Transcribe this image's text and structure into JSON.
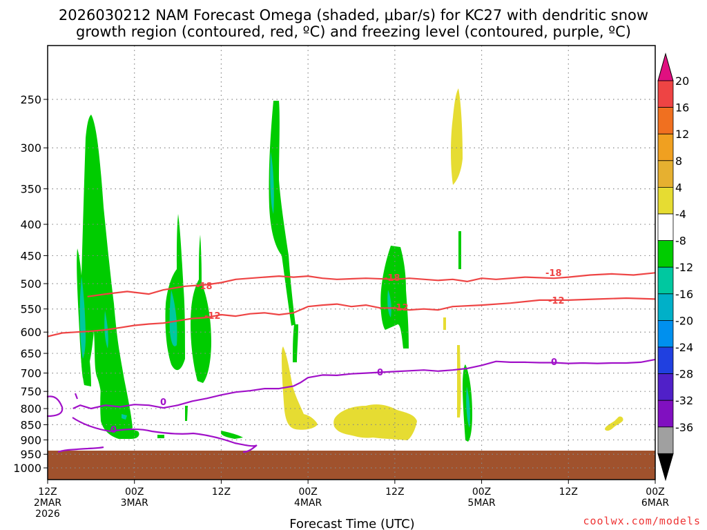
{
  "page": {
    "title_line1": "2026030212 NAM Forecast Omega (shaded, μbar/s) for KC27 with dendritic snow",
    "title_line2": "growth region (contoured, red, ºC) and freezing level (contoured, purple, ºC)",
    "x_axis_title": "Forecast Time (UTC)",
    "credit": "coolwx.com/models"
  },
  "colors": {
    "green": "#00cc00",
    "teal": "#00c8a0",
    "yellow": "#e6dc32",
    "red_contour": "#ee4444",
    "purple_contour": "#a010c8",
    "ground": "#a0522d",
    "grid": "#888888"
  },
  "chart_data": {
    "type": "heatmap",
    "title": "2026030212 NAM Forecast Omega (shaded, μbar/s) for KC27 with dendritic snow growth region (contoured, red, ºC) and freezing level (contoured, purple, ºC)",
    "xlabel": "Forecast Time (UTC)",
    "ylabel": "",
    "y_scale": "pressure (log)",
    "y_ticks": [
      250,
      300,
      350,
      400,
      450,
      500,
      550,
      600,
      650,
      700,
      750,
      800,
      850,
      900,
      950,
      1000
    ],
    "x_hours_range": [
      0,
      84
    ],
    "x_ticks": [
      {
        "hour": 0,
        "lines": [
          "12Z",
          "2MAR",
          "2026"
        ]
      },
      {
        "hour": 12,
        "lines": [
          "00Z",
          "3MAR"
        ]
      },
      {
        "hour": 24,
        "lines": [
          "12Z"
        ]
      },
      {
        "hour": 36,
        "lines": [
          "00Z",
          "4MAR"
        ]
      },
      {
        "hour": 48,
        "lines": [
          "12Z"
        ]
      },
      {
        "hour": 60,
        "lines": [
          "00Z",
          "5MAR"
        ]
      },
      {
        "hour": 72,
        "lines": [
          "12Z"
        ]
      },
      {
        "hour": 84,
        "lines": [
          "00Z",
          "6MAR"
        ]
      }
    ],
    "colorbar": {
      "labels": [
        20,
        16,
        12,
        8,
        4,
        -4,
        -8,
        -12,
        -16,
        -20,
        -24,
        -28,
        -32,
        -36
      ],
      "bands": [
        "#ee4444",
        "#f07020",
        "#f0a020",
        "#e6b030",
        "#e6dc32",
        "#ffffff",
        "#00cc00",
        "#00c8a0",
        "#00b0c8",
        "#0090ee",
        "#2040e0",
        "#5020c8",
        "#8010c0",
        "#a0a0a0"
      ],
      "top_arrow": "#e01080",
      "bottom_arrow": "#000000"
    },
    "ground_pressure": 940,
    "contour_labels": [
      {
        "text": "-18",
        "color": "red"
      },
      {
        "text": "-18",
        "color": "red"
      },
      {
        "text": "-18",
        "color": "red"
      },
      {
        "text": "-12",
        "color": "red"
      },
      {
        "text": "-12",
        "color": "red"
      },
      {
        "text": "-12",
        "color": "red"
      },
      {
        "text": "0",
        "color": "purple"
      },
      {
        "text": "0",
        "color": "purple"
      },
      {
        "text": "0",
        "color": "purple"
      },
      {
        "text": "0",
        "color": "purple"
      }
    ],
    "series": [
      {
        "kind": "contour",
        "value": -18,
        "color": "red",
        "points": [
          [
            5.5,
            525
          ],
          [
            8,
            520
          ],
          [
            11,
            515
          ],
          [
            14,
            520
          ],
          [
            16,
            512
          ],
          [
            19,
            505
          ],
          [
            22,
            502
          ],
          [
            24,
            498
          ],
          [
            26,
            492
          ],
          [
            28,
            490
          ],
          [
            30,
            488
          ],
          [
            32,
            486
          ],
          [
            34,
            488
          ],
          [
            36,
            486
          ],
          [
            38,
            490
          ],
          [
            40,
            492
          ],
          [
            44,
            490
          ],
          [
            48,
            492
          ],
          [
            50,
            490
          ],
          [
            54,
            494
          ],
          [
            56,
            492
          ],
          [
            58,
            496
          ],
          [
            60,
            490
          ],
          [
            62,
            492
          ],
          [
            66,
            488
          ],
          [
            70,
            490
          ],
          [
            72,
            488
          ],
          [
            75,
            484
          ],
          [
            78,
            482
          ],
          [
            81,
            484
          ],
          [
            84,
            480
          ]
        ]
      },
      {
        "kind": "contour",
        "value": -12,
        "color": "red",
        "points": [
          [
            0,
            610
          ],
          [
            2,
            602
          ],
          [
            4,
            600
          ],
          [
            6,
            598
          ],
          [
            8,
            595
          ],
          [
            10,
            590
          ],
          [
            12,
            585
          ],
          [
            14,
            582
          ],
          [
            16,
            580
          ],
          [
            18,
            575
          ],
          [
            20,
            570
          ],
          [
            22,
            568
          ],
          [
            24,
            562
          ],
          [
            26,
            565
          ],
          [
            28,
            560
          ],
          [
            30,
            558
          ],
          [
            32,
            562
          ],
          [
            34,
            558
          ],
          [
            36,
            545
          ],
          [
            38,
            542
          ],
          [
            40,
            540
          ],
          [
            42,
            545
          ],
          [
            44,
            542
          ],
          [
            46,
            548
          ],
          [
            48,
            548
          ],
          [
            50,
            552
          ],
          [
            52,
            550
          ],
          [
            54,
            552
          ],
          [
            56,
            545
          ],
          [
            60,
            542
          ],
          [
            64,
            538
          ],
          [
            68,
            532
          ],
          [
            72,
            532
          ],
          [
            76,
            530
          ],
          [
            80,
            528
          ],
          [
            84,
            530
          ]
        ]
      },
      {
        "kind": "contour",
        "value": 0,
        "color": "purple",
        "points": [
          [
            3.5,
            800
          ],
          [
            4.5,
            790
          ],
          [
            6,
            800
          ],
          [
            8,
            790
          ],
          [
            10,
            795
          ],
          [
            12,
            788
          ],
          [
            14,
            790
          ],
          [
            16,
            798
          ],
          [
            18,
            790
          ],
          [
            20,
            778
          ],
          [
            22,
            770
          ],
          [
            24,
            760
          ],
          [
            26,
            752
          ],
          [
            28,
            748
          ],
          [
            30,
            742
          ],
          [
            32,
            742
          ],
          [
            34,
            735
          ],
          [
            35,
            725
          ],
          [
            36,
            712
          ],
          [
            38,
            705
          ],
          [
            40,
            706
          ],
          [
            42,
            702
          ],
          [
            44,
            700
          ],
          [
            46,
            698
          ],
          [
            48,
            696
          ],
          [
            50,
            694
          ],
          [
            52,
            692
          ],
          [
            54,
            695
          ],
          [
            56,
            692
          ],
          [
            58,
            688
          ],
          [
            60,
            680
          ],
          [
            62,
            670
          ],
          [
            64,
            672
          ],
          [
            66,
            672
          ],
          [
            68,
            673
          ],
          [
            70,
            673
          ],
          [
            72,
            675
          ],
          [
            74,
            674
          ],
          [
            76,
            675
          ],
          [
            78,
            674
          ],
          [
            80,
            674
          ],
          [
            82,
            672
          ],
          [
            84,
            665
          ]
        ]
      }
    ]
  }
}
